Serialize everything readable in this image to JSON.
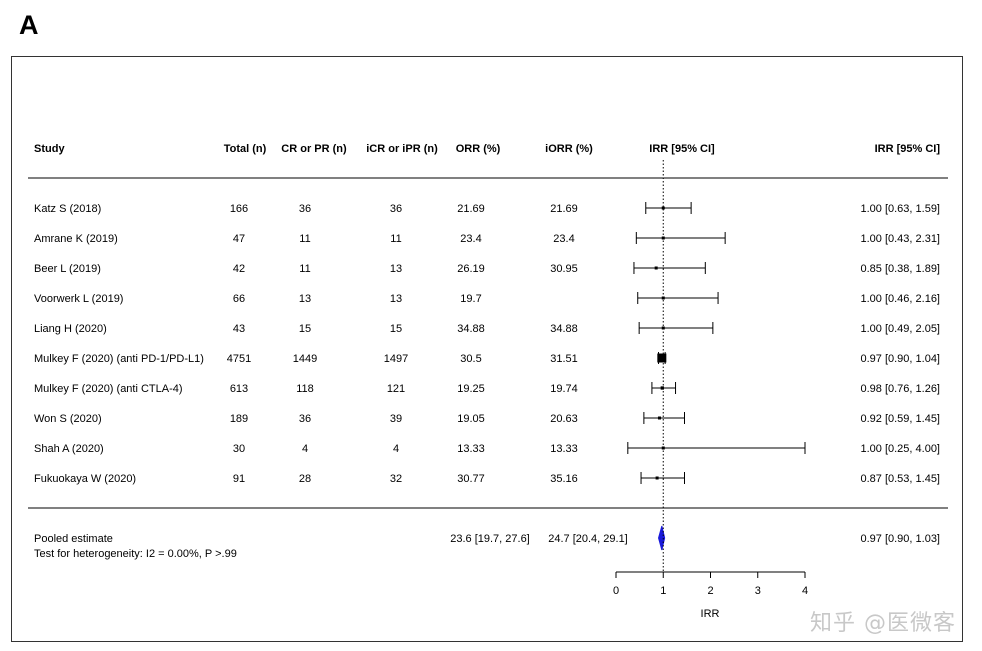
{
  "panel_label": "A",
  "watermark": "知乎 @医微客",
  "chart_data": {
    "type": "forest",
    "columns": [
      "Study",
      "Total (n)",
      "CR or PR (n)",
      "iCR or iPR (n)",
      "ORR (%)",
      "iORR (%)",
      "IRR [95% CI]",
      "IRR [95% CI]"
    ],
    "studies": [
      {
        "study": "Katz S (2018)",
        "total": "166",
        "cr_pr": "36",
        "icr_ipr": "36",
        "orr": "21.69",
        "iorr": "21.69",
        "irr": 1.0,
        "lo": 0.63,
        "hi": 1.59,
        "irr_text": "1.00 [0.63, 1.59]"
      },
      {
        "study": "Amrane K (2019)",
        "total": "47",
        "cr_pr": "11",
        "icr_ipr": "11",
        "orr": "23.4",
        "iorr": "23.4",
        "irr": 1.0,
        "lo": 0.43,
        "hi": 2.31,
        "irr_text": "1.00 [0.43, 2.31]"
      },
      {
        "study": "Beer L (2019)",
        "total": "42",
        "cr_pr": "11",
        "icr_ipr": "13",
        "orr": "26.19",
        "iorr": "30.95",
        "irr": 0.85,
        "lo": 0.38,
        "hi": 1.89,
        "irr_text": "0.85 [0.38, 1.89]"
      },
      {
        "study": "Voorwerk L (2019)",
        "total": "66",
        "cr_pr": "13",
        "icr_ipr": "13",
        "orr": "19.7",
        "iorr": "",
        "irr": 1.0,
        "lo": 0.46,
        "hi": 2.16,
        "irr_text": "1.00 [0.46, 2.16]"
      },
      {
        "study": "Liang H (2020)",
        "total": "43",
        "cr_pr": "15",
        "icr_ipr": "15",
        "orr": "34.88",
        "iorr": "34.88",
        "irr": 1.0,
        "lo": 0.49,
        "hi": 2.05,
        "irr_text": "1.00 [0.49, 2.05]"
      },
      {
        "study": "Mulkey F (2020) (anti PD-1/PD-L1)",
        "total": "4751",
        "cr_pr": "1449",
        "icr_ipr": "1497",
        "orr": "30.5",
        "iorr": "31.51",
        "irr": 0.97,
        "lo": 0.9,
        "hi": 1.04,
        "irr_text": "0.97 [0.90, 1.04]"
      },
      {
        "study": "Mulkey F (2020) (anti CTLA-4)",
        "total": "613",
        "cr_pr": "118",
        "icr_ipr": "121",
        "orr": "19.25",
        "iorr": "19.74",
        "irr": 0.98,
        "lo": 0.76,
        "hi": 1.26,
        "irr_text": "0.98 [0.76, 1.26]"
      },
      {
        "study": "Won S (2020)",
        "total": "189",
        "cr_pr": "36",
        "icr_ipr": "39",
        "orr": "19.05",
        "iorr": "20.63",
        "irr": 0.92,
        "lo": 0.59,
        "hi": 1.45,
        "irr_text": "0.92 [0.59, 1.45]"
      },
      {
        "study": "Shah A (2020)",
        "total": "30",
        "cr_pr": "4",
        "icr_ipr": "4",
        "orr": "13.33",
        "iorr": "13.33",
        "irr": 1.0,
        "lo": 0.25,
        "hi": 4.0,
        "irr_text": "1.00 [0.25, 4.00]"
      },
      {
        "study": "Fukuokaya W (2020)",
        "total": "91",
        "cr_pr": "28",
        "icr_ipr": "32",
        "orr": "30.77",
        "iorr": "35.16",
        "irr": 0.87,
        "lo": 0.53,
        "hi": 1.45,
        "irr_text": "0.87 [0.53, 1.45]"
      }
    ],
    "pooled": {
      "label": "Pooled estimate",
      "heterogeneity": "Test for heterogeneity: I2 = 0.00%, P >.99",
      "orr": "23.6 [19.7, 27.6]",
      "iorr": "24.7 [20.4, 29.1]",
      "irr": 0.97,
      "lo": 0.9,
      "hi": 1.03,
      "irr_text": "0.97 [0.90, 1.03]"
    },
    "reference_line": 1,
    "xlim": [
      0,
      4
    ],
    "xticks": [
      0,
      1,
      2,
      3,
      4
    ],
    "xlabel": "IRR"
  },
  "colors": {
    "pooled_diamond": "#1a1adb",
    "ink": "#000000"
  }
}
